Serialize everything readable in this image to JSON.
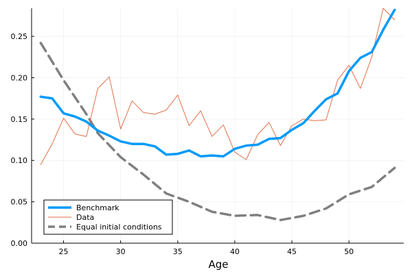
{
  "chart_data": {
    "type": "line",
    "title": "",
    "xlabel": "Age",
    "ylabel": "",
    "xlim": [
      22.2,
      54.8
    ],
    "ylim": [
      0.0,
      0.284
    ],
    "x_ticks": [
      25,
      30,
      35,
      40,
      45,
      50
    ],
    "x_tick_labels": [
      "25",
      "30",
      "35",
      "40",
      "45",
      "50"
    ],
    "y_ticks": [
      0.0,
      0.05,
      0.1,
      0.15,
      0.2,
      0.25
    ],
    "y_tick_labels": [
      "0.00",
      "0.05",
      "0.10",
      "0.15",
      "0.20",
      "0.25"
    ],
    "grid": true,
    "legend_position": "bottom-left",
    "x": [
      23,
      24,
      25,
      26,
      27,
      28,
      29,
      30,
      31,
      32,
      33,
      34,
      35,
      36,
      37,
      38,
      39,
      40,
      41,
      42,
      43,
      44,
      45,
      46,
      47,
      48,
      49,
      50,
      51,
      52,
      53,
      54
    ],
    "series": [
      {
        "name": "Benchmark",
        "color": "#009AF9",
        "style": "solid-thick",
        "values": [
          0.177,
          0.175,
          0.157,
          0.153,
          0.147,
          0.136,
          0.13,
          0.123,
          0.12,
          0.12,
          0.117,
          0.107,
          0.108,
          0.112,
          0.105,
          0.106,
          0.105,
          0.114,
          0.118,
          0.119,
          0.126,
          0.127,
          0.137,
          0.145,
          0.16,
          0.174,
          0.181,
          0.208,
          0.224,
          0.231,
          0.258,
          0.282
        ]
      },
      {
        "name": "Data",
        "color": "#E26F46",
        "style": "solid-thin",
        "values": [
          0.095,
          0.12,
          0.151,
          0.132,
          0.129,
          0.187,
          0.201,
          0.138,
          0.172,
          0.158,
          0.156,
          0.161,
          0.179,
          0.142,
          0.16,
          0.129,
          0.143,
          0.11,
          0.101,
          0.131,
          0.146,
          0.118,
          0.142,
          0.15,
          0.148,
          0.149,
          0.197,
          0.215,
          0.187,
          0.225,
          0.284,
          0.27
        ]
      },
      {
        "name": "Equal initial conditions",
        "color": "#808080",
        "style": "dashed",
        "x": [
          23,
          25,
          27,
          28,
          30,
          32,
          34,
          36,
          38,
          40,
          42,
          44,
          46,
          48,
          50,
          52,
          54
        ],
        "values": [
          0.242,
          0.197,
          0.156,
          0.133,
          0.104,
          0.083,
          0.06,
          0.05,
          0.038,
          0.033,
          0.034,
          0.028,
          0.033,
          0.042,
          0.059,
          0.068,
          0.091
        ]
      }
    ]
  }
}
